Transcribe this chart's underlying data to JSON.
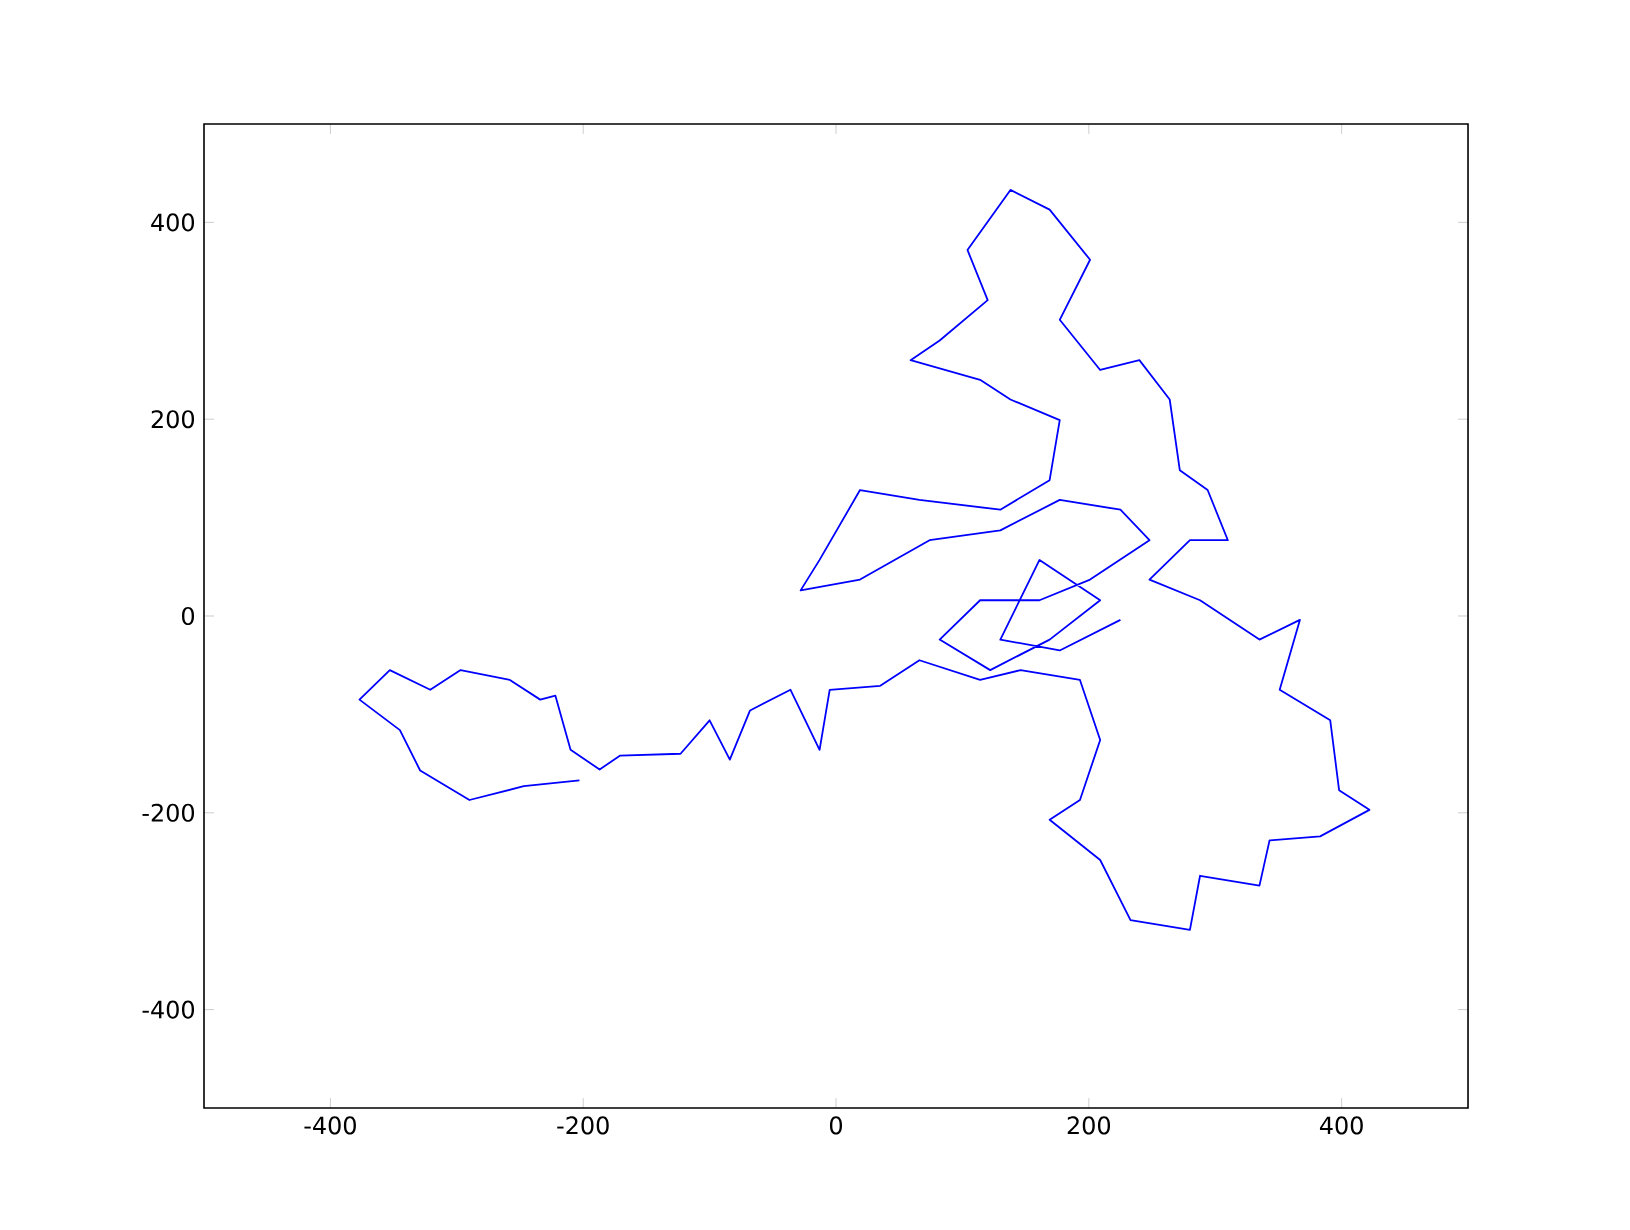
{
  "chart_data": {
    "type": "line",
    "series": [
      {
        "color": "#0000ff",
        "x": [
          -203,
          -247,
          -290,
          -329,
          -345,
          -377,
          -353,
          -321,
          -297,
          -258,
          -234,
          -222,
          -210,
          -187,
          -171,
          -123,
          -100,
          -84,
          -68,
          -36,
          -13,
          -5,
          35,
          66,
          114,
          146,
          193,
          209,
          193,
          169,
          209,
          233,
          280,
          288,
          335,
          343,
          383,
          422,
          398,
          391,
          351,
          367,
          335,
          288,
          248,
          280,
          310,
          294,
          272,
          264,
          240,
          209,
          177,
          201,
          169,
          138,
          104,
          120,
          82,
          59,
          114,
          138,
          177,
          169,
          130,
          66,
          19,
          -13,
          -28,
          19,
          74,
          130,
          177,
          225,
          248,
          201,
          161,
          114,
          82,
          122,
          169,
          209,
          161,
          130,
          177,
          225
        ],
        "values": [
          -167,
          -173,
          -187,
          -157,
          -116,
          -85,
          -55,
          -75,
          -55,
          -65,
          -85,
          -81,
          -136,
          -156,
          -142,
          -140,
          -106,
          -146,
          -96,
          -75,
          -136,
          -75,
          -71,
          -45,
          -65,
          -55,
          -65,
          -126,
          -187,
          -207,
          -248,
          -309,
          -319,
          -264,
          -274,
          -228,
          -224,
          -197,
          -177,
          -106,
          -75,
          -4,
          -24,
          16,
          37,
          77,
          77,
          128,
          148,
          220,
          260,
          250,
          301,
          362,
          413,
          433,
          372,
          321,
          280,
          260,
          240,
          220,
          199,
          138,
          108,
          118,
          128,
          57,
          26,
          37,
          77,
          87,
          118,
          108,
          77,
          37,
          16,
          16,
          -24,
          -55,
          -24,
          16,
          57,
          -24,
          -35,
          -4
        ]
      }
    ],
    "xlim": [
      -500,
      500
    ],
    "ylim": [
      -500,
      500
    ],
    "xticks": [
      -400,
      -200,
      0,
      200,
      400
    ],
    "yticks": [
      -400,
      -200,
      0,
      200,
      400
    ],
    "grid": false,
    "marker": "none",
    "line_style": "solid"
  }
}
